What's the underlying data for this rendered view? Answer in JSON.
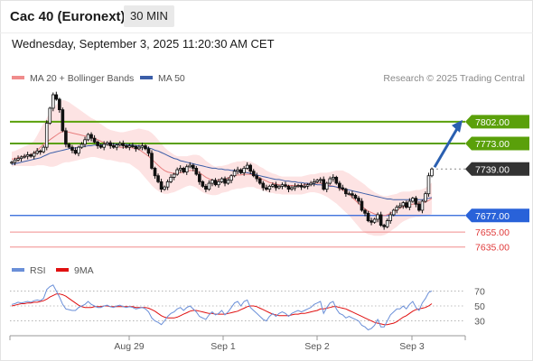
{
  "header": {
    "title": "Cac 40 (Euronext)",
    "timeframe": "30 MIN",
    "datetime": "Wednesday, September 3, 2025 11:20:30 AM CET"
  },
  "legend": {
    "ma20": {
      "label": "MA 20 + Bollinger Bands",
      "color": "#f08c8c"
    },
    "ma50": {
      "label": "MA 50",
      "color": "#3b5ea8"
    },
    "credit": "Research © 2025 Trading Central"
  },
  "rsi_legend": {
    "rsi": {
      "label": "RSI",
      "color": "#6a8fd8"
    },
    "ma": {
      "label": "9MA",
      "color": "#e01010"
    }
  },
  "colors": {
    "resistance": "#5aa00a",
    "pivot": "#2962d9",
    "support": "#f08c8c",
    "last": "#333333",
    "up": "#ffffff",
    "down": "#111111",
    "band": "#fde3e3"
  },
  "chart_data": [
    {
      "type": "candlestick",
      "title": "Cac 40 (Euronext)",
      "timeframe": "30 MIN",
      "x_tick_labels": [
        "Aug 29",
        "Sep 1",
        "Sep 2",
        "Sep 3"
      ],
      "y_range": [
        7625,
        7850
      ],
      "levels": [
        {
          "value": 7802.0,
          "label": "7802.00",
          "kind": "resistance"
        },
        {
          "value": 7773.0,
          "label": "7773.00",
          "kind": "resistance"
        },
        {
          "value": 7739.0,
          "label": "7739.00",
          "kind": "last"
        },
        {
          "value": 7677.0,
          "label": "7677.00",
          "kind": "pivot"
        },
        {
          "value": 7655.0,
          "label": "7655.00",
          "kind": "support"
        },
        {
          "value": 7635.0,
          "label": "7635.00",
          "kind": "support"
        }
      ],
      "close_series": [
        7748,
        7751,
        7753,
        7755,
        7756,
        7758,
        7756,
        7760,
        7763,
        7762,
        7768,
        7800,
        7820,
        7838,
        7832,
        7818,
        7790,
        7772,
        7768,
        7764,
        7760,
        7768,
        7772,
        7778,
        7785,
        7780,
        7775,
        7770,
        7768,
        7772,
        7774,
        7770,
        7768,
        7771,
        7773,
        7770,
        7768,
        7770,
        7769,
        7766,
        7768,
        7770,
        7766,
        7760,
        7740,
        7730,
        7722,
        7712,
        7715,
        7722,
        7728,
        7732,
        7738,
        7740,
        7735,
        7742,
        7744,
        7740,
        7732,
        7722,
        7716,
        7712,
        7720,
        7724,
        7718,
        7722,
        7726,
        7720,
        7724,
        7730,
        7736,
        7738,
        7734,
        7740,
        7744,
        7736,
        7730,
        7726,
        7720,
        7714,
        7712,
        7716,
        7718,
        7714,
        7716,
        7718,
        7716,
        7712,
        7714,
        7716,
        7717,
        7715,
        7716,
        7718,
        7720,
        7722,
        7724,
        7725,
        7712,
        7720,
        7726,
        7728,
        7720,
        7714,
        7712,
        7706,
        7706,
        7704,
        7700,
        7696,
        7684,
        7680,
        7670,
        7668,
        7672,
        7678,
        7664,
        7662,
        7670,
        7678,
        7684,
        7688,
        7690,
        7694,
        7688,
        7696,
        7700,
        7692,
        7684,
        7696,
        7706,
        7730,
        7739
      ],
      "ma20_series": [
        7752,
        7753,
        7754,
        7755,
        7756,
        7757,
        7758,
        7760,
        7764,
        7768,
        7772,
        7775,
        7778,
        7781,
        7784,
        7787,
        7789,
        7789,
        7788,
        7787,
        7786,
        7785,
        7784,
        7783,
        7782,
        7781,
        7780,
        7778,
        7776,
        7774,
        7772,
        7771,
        7770,
        7769,
        7768,
        7768,
        7768,
        7768,
        7767,
        7766,
        7765,
        7762,
        7759,
        7756,
        7752,
        7748,
        7744,
        7740,
        7737,
        7735,
        7734,
        7733,
        7733,
        7734,
        7735,
        7736,
        7737,
        7737,
        7736,
        7734,
        7731,
        7728,
        7726,
        7724,
        7723,
        7724,
        7725,
        7726,
        7727,
        7729,
        7730,
        7731,
        7731,
        7732,
        7732,
        7732,
        7731,
        7729,
        7727,
        7725,
        7723,
        7721,
        7720,
        7719,
        7718,
        7717,
        7717,
        7717,
        7717,
        7717,
        7717,
        7717,
        7718,
        7719,
        7720,
        7720,
        7720,
        7720,
        7719,
        7718,
        7717,
        7716,
        7715,
        7713,
        7711,
        7708,
        7705,
        7701,
        7697,
        7693,
        7689,
        7686,
        7683,
        7681,
        7679,
        7678,
        7677,
        7677,
        7678,
        7680,
        7682,
        7684,
        7687,
        7689,
        7690,
        7691,
        7692,
        7693,
        7693,
        7694,
        7695,
        7697,
        7700
      ],
      "ma50_series": [
        7745,
        7746,
        7747,
        7748,
        7749,
        7750,
        7751,
        7752,
        7753,
        7754,
        7756,
        7758,
        7760,
        7761,
        7762,
        7763,
        7764,
        7765,
        7766,
        7767,
        7767,
        7768,
        7769,
        7769,
        7770,
        7770,
        7771,
        7771,
        7771,
        7772,
        7772,
        7772,
        7772,
        7772,
        7772,
        7772,
        7772,
        7771,
        7771,
        7770,
        7770,
        7769,
        7768,
        7767,
        7766,
        7764,
        7763,
        7761,
        7759,
        7757,
        7755,
        7753,
        7752,
        7750,
        7749,
        7748,
        7747,
        7746,
        7745,
        7744,
        7743,
        7742,
        7741,
        7740,
        7740,
        7739,
        7739,
        7738,
        7738,
        7737,
        7737,
        7736,
        7735,
        7735,
        7734,
        7733,
        7732,
        7731,
        7730,
        7729,
        7728,
        7727,
        7726,
        7725,
        7725,
        7724,
        7723,
        7723,
        7722,
        7722,
        7721,
        7721,
        7720,
        7720,
        7719,
        7719,
        7718,
        7718,
        7717,
        7717,
        7716,
        7716,
        7715,
        7714,
        7713,
        7712,
        7711,
        7710,
        7709,
        7708,
        7707,
        7706,
        7705,
        7704,
        7703,
        7702,
        7701,
        7700,
        7699,
        7699,
        7698,
        7698,
        7698,
        7698,
        7698,
        7698,
        7698,
        7698,
        7698,
        7698,
        7699,
        7700,
        7701
      ],
      "band_width_series": [
        10,
        10,
        11,
        12,
        13,
        14,
        15,
        17,
        20,
        24,
        28,
        32,
        36,
        39,
        41,
        42,
        42,
        41,
        40,
        38,
        36,
        34,
        32,
        30,
        28,
        26,
        25,
        24,
        23,
        22,
        21,
        20,
        20,
        20,
        20,
        20,
        21,
        22,
        24,
        26,
        28,
        30,
        32,
        34,
        35,
        35,
        34,
        33,
        31,
        29,
        27,
        25,
        23,
        22,
        21,
        20,
        20,
        21,
        22,
        23,
        23,
        22,
        21,
        20,
        19,
        19,
        18,
        18,
        18,
        18,
        18,
        18,
        18,
        18,
        17,
        17,
        16,
        16,
        15,
        15,
        14,
        14,
        13,
        13,
        12,
        12,
        12,
        12,
        12,
        12,
        12,
        12,
        12,
        12,
        12,
        12,
        13,
        14,
        15,
        16,
        18,
        20,
        22,
        24,
        26,
        27,
        28,
        29,
        30,
        31,
        32,
        32,
        31,
        30,
        29,
        28,
        27,
        26,
        25,
        24,
        23,
        22,
        21,
        20,
        19,
        18,
        18,
        18,
        18,
        18,
        19,
        20,
        21
      ]
    },
    {
      "type": "line",
      "title": "RSI",
      "series_names": [
        "RSI",
        "9MA"
      ],
      "y_tick_labels": [
        "70",
        "50",
        "30"
      ],
      "y_range": [
        15,
        85
      ],
      "rsi_series": [
        52,
        53,
        55,
        54,
        55,
        56,
        55,
        57,
        58,
        57,
        60,
        72,
        76,
        78,
        70,
        62,
        52,
        46,
        45,
        44,
        44,
        48,
        50,
        52,
        56,
        52,
        50,
        48,
        48,
        50,
        51,
        49,
        48,
        50,
        51,
        49,
        48,
        49,
        48,
        46,
        47,
        48,
        46,
        42,
        34,
        30,
        28,
        25,
        30,
        36,
        40,
        42,
        46,
        48,
        44,
        48,
        50,
        46,
        42,
        36,
        34,
        32,
        38,
        42,
        38,
        40,
        44,
        38,
        42,
        48,
        54,
        56,
        50,
        56,
        58,
        48,
        44,
        40,
        36,
        32,
        30,
        36,
        40,
        36,
        40,
        42,
        40,
        36,
        40,
        42,
        44,
        42,
        44,
        46,
        48,
        52,
        54,
        56,
        40,
        48,
        54,
        56,
        46,
        40,
        38,
        34,
        36,
        34,
        32,
        30,
        24,
        22,
        18,
        20,
        24,
        32,
        22,
        22,
        30,
        38,
        42,
        46,
        46,
        50,
        46,
        52,
        56,
        48,
        44,
        54,
        60,
        68,
        70
      ],
      "ma9_series": [
        50,
        51,
        52,
        53,
        53,
        54,
        54,
        55,
        55,
        56,
        57,
        59,
        62,
        64,
        66,
        66,
        65,
        63,
        60,
        57,
        54,
        51,
        49,
        48,
        48,
        48,
        49,
        49,
        49,
        50,
        50,
        49,
        49,
        49,
        49,
        49,
        49,
        49,
        49,
        48,
        48,
        48,
        48,
        47,
        45,
        43,
        40,
        37,
        35,
        34,
        34,
        34,
        35,
        37,
        39,
        41,
        43,
        44,
        44,
        43,
        42,
        41,
        40,
        40,
        39,
        39,
        39,
        39,
        40,
        41,
        42,
        43,
        45,
        47,
        49,
        50,
        50,
        49,
        47,
        45,
        43,
        41,
        39,
        38,
        37,
        37,
        37,
        37,
        38,
        39,
        39,
        40,
        40,
        41,
        42,
        43,
        44,
        46,
        46,
        47,
        48,
        49,
        49,
        48,
        47,
        46,
        44,
        42,
        40,
        38,
        36,
        34,
        32,
        30,
        28,
        27,
        26,
        25,
        25,
        26,
        27,
        29,
        32,
        35,
        37,
        40,
        43,
        45,
        46,
        47,
        48,
        50,
        53
      ]
    }
  ]
}
